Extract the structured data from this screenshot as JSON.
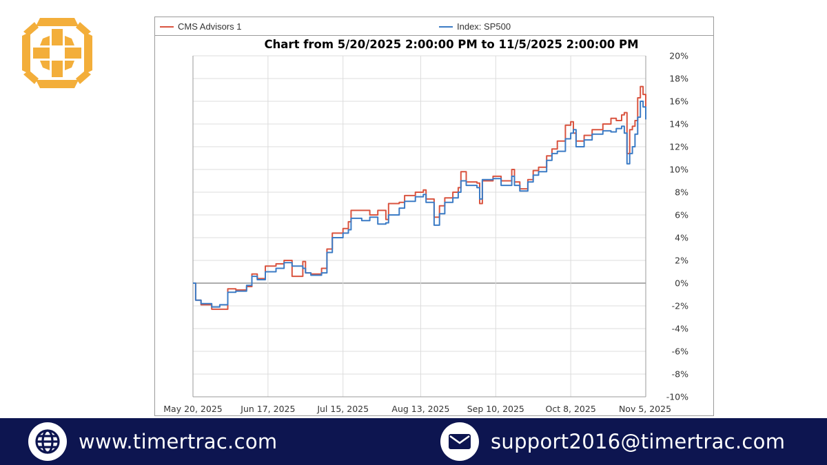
{
  "brand": {
    "logo_icon": "compass-cross-icon",
    "logo_color": "#f3ae3a"
  },
  "chart_data": {
    "type": "line",
    "title": "Chart from 5/20/2025 2:00:00 PM to 11/5/2025 2:00:00 PM",
    "xlabel": "",
    "ylabel": "",
    "ylim": [
      -10,
      20
    ],
    "y_ticks": [
      "20%",
      "18%",
      "16%",
      "14%",
      "12%",
      "10%",
      "8%",
      "6%",
      "4%",
      "2%",
      "0%",
      "-2%",
      "-4%",
      "-6%",
      "-8%",
      "-10%"
    ],
    "x_ticks": [
      "May 20, 2025",
      "Jun 17, 2025",
      "Jul 15, 2025",
      "Aug 13, 2025",
      "Sep 10, 2025",
      "Oct 8, 2025",
      "Nov 5, 2025"
    ],
    "grid": true,
    "legend_position": "top",
    "series": [
      {
        "name": "CMS Advisors 1",
        "color": "#d9533f",
        "points": [
          [
            "2025-05-20",
            0.0
          ],
          [
            "2025-05-21",
            -1.5
          ],
          [
            "2025-05-23",
            -1.9
          ],
          [
            "2025-05-27",
            -2.3
          ],
          [
            "2025-05-30",
            -2.3
          ],
          [
            "2025-06-02",
            -0.5
          ],
          [
            "2025-06-05",
            -0.6
          ],
          [
            "2025-06-09",
            -0.3
          ],
          [
            "2025-06-11",
            0.8
          ],
          [
            "2025-06-13",
            0.4
          ],
          [
            "2025-06-16",
            1.5
          ],
          [
            "2025-06-20",
            1.7
          ],
          [
            "2025-06-23",
            2.0
          ],
          [
            "2025-06-26",
            0.6
          ],
          [
            "2025-06-30",
            1.9
          ],
          [
            "2025-07-01",
            0.9
          ],
          [
            "2025-07-03",
            0.8
          ],
          [
            "2025-07-07",
            1.3
          ],
          [
            "2025-07-09",
            3.0
          ],
          [
            "2025-07-11",
            4.4
          ],
          [
            "2025-07-15",
            4.8
          ],
          [
            "2025-07-17",
            5.4
          ],
          [
            "2025-07-18",
            6.4
          ],
          [
            "2025-07-22",
            6.4
          ],
          [
            "2025-07-25",
            6.0
          ],
          [
            "2025-07-28",
            6.4
          ],
          [
            "2025-07-31",
            5.6
          ],
          [
            "2025-08-01",
            7.0
          ],
          [
            "2025-08-05",
            7.1
          ],
          [
            "2025-08-07",
            7.7
          ],
          [
            "2025-08-11",
            8.0
          ],
          [
            "2025-08-14",
            8.2
          ],
          [
            "2025-08-15",
            7.4
          ],
          [
            "2025-08-18",
            5.8
          ],
          [
            "2025-08-20",
            6.8
          ],
          [
            "2025-08-22",
            7.5
          ],
          [
            "2025-08-25",
            8.0
          ],
          [
            "2025-08-27",
            8.4
          ],
          [
            "2025-08-28",
            9.8
          ],
          [
            "2025-08-30",
            8.9
          ],
          [
            "2025-09-03",
            8.8
          ],
          [
            "2025-09-04",
            7.0
          ],
          [
            "2025-09-05",
            9.0
          ],
          [
            "2025-09-09",
            9.4
          ],
          [
            "2025-09-12",
            9.0
          ],
          [
            "2025-09-16",
            10.0
          ],
          [
            "2025-09-17",
            8.9
          ],
          [
            "2025-09-19",
            8.3
          ],
          [
            "2025-09-22",
            9.1
          ],
          [
            "2025-09-24",
            9.9
          ],
          [
            "2025-09-26",
            10.2
          ],
          [
            "2025-09-29",
            11.2
          ],
          [
            "2025-10-01",
            11.8
          ],
          [
            "2025-10-03",
            12.5
          ],
          [
            "2025-10-06",
            13.9
          ],
          [
            "2025-10-08",
            14.2
          ],
          [
            "2025-10-09",
            13.2
          ],
          [
            "2025-10-10",
            12.5
          ],
          [
            "2025-10-13",
            13.0
          ],
          [
            "2025-10-16",
            13.5
          ],
          [
            "2025-10-20",
            14.0
          ],
          [
            "2025-10-23",
            14.5
          ],
          [
            "2025-10-25",
            14.3
          ],
          [
            "2025-10-27",
            14.8
          ],
          [
            "2025-10-28",
            15.0
          ],
          [
            "2025-10-29",
            11.4
          ],
          [
            "2025-10-30",
            13.5
          ],
          [
            "2025-10-31",
            13.8
          ],
          [
            "2025-11-01",
            14.3
          ],
          [
            "2025-11-02",
            16.3
          ],
          [
            "2025-11-03",
            17.3
          ],
          [
            "2025-11-04",
            16.6
          ],
          [
            "2025-11-05",
            15.2
          ]
        ]
      },
      {
        "name": "Index: SP500",
        "color": "#3b7bc5",
        "points": [
          [
            "2025-05-20",
            0.0
          ],
          [
            "2025-05-21",
            -1.5
          ],
          [
            "2025-05-23",
            -1.8
          ],
          [
            "2025-05-27",
            -2.1
          ],
          [
            "2025-05-30",
            -1.9
          ],
          [
            "2025-06-02",
            -0.8
          ],
          [
            "2025-06-05",
            -0.7
          ],
          [
            "2025-06-09",
            -0.2
          ],
          [
            "2025-06-11",
            0.6
          ],
          [
            "2025-06-13",
            0.3
          ],
          [
            "2025-06-16",
            1.0
          ],
          [
            "2025-06-20",
            1.3
          ],
          [
            "2025-06-23",
            1.8
          ],
          [
            "2025-06-26",
            1.5
          ],
          [
            "2025-06-30",
            1.3
          ],
          [
            "2025-07-01",
            0.9
          ],
          [
            "2025-07-03",
            0.7
          ],
          [
            "2025-07-07",
            0.9
          ],
          [
            "2025-07-09",
            2.7
          ],
          [
            "2025-07-11",
            4.0
          ],
          [
            "2025-07-15",
            4.4
          ],
          [
            "2025-07-17",
            4.7
          ],
          [
            "2025-07-18",
            5.7
          ],
          [
            "2025-07-22",
            5.5
          ],
          [
            "2025-07-25",
            5.8
          ],
          [
            "2025-07-28",
            5.2
          ],
          [
            "2025-07-31",
            5.3
          ],
          [
            "2025-08-01",
            6.0
          ],
          [
            "2025-08-05",
            6.6
          ],
          [
            "2025-08-07",
            7.2
          ],
          [
            "2025-08-11",
            7.6
          ],
          [
            "2025-08-14",
            7.8
          ],
          [
            "2025-08-15",
            7.1
          ],
          [
            "2025-08-18",
            5.1
          ],
          [
            "2025-08-20",
            6.1
          ],
          [
            "2025-08-22",
            7.1
          ],
          [
            "2025-08-25",
            7.5
          ],
          [
            "2025-08-27",
            8.0
          ],
          [
            "2025-08-28",
            9.0
          ],
          [
            "2025-08-30",
            8.6
          ],
          [
            "2025-09-03",
            8.4
          ],
          [
            "2025-09-04",
            7.4
          ],
          [
            "2025-09-05",
            9.1
          ],
          [
            "2025-09-09",
            9.2
          ],
          [
            "2025-09-12",
            8.6
          ],
          [
            "2025-09-16",
            9.4
          ],
          [
            "2025-09-17",
            8.6
          ],
          [
            "2025-09-19",
            8.1
          ],
          [
            "2025-09-22",
            8.9
          ],
          [
            "2025-09-24",
            9.5
          ],
          [
            "2025-09-26",
            9.8
          ],
          [
            "2025-09-29",
            10.8
          ],
          [
            "2025-10-01",
            11.4
          ],
          [
            "2025-10-03",
            11.6
          ],
          [
            "2025-10-06",
            12.7
          ],
          [
            "2025-10-08",
            13.2
          ],
          [
            "2025-10-09",
            13.5
          ],
          [
            "2025-10-10",
            12.0
          ],
          [
            "2025-10-13",
            12.6
          ],
          [
            "2025-10-16",
            13.1
          ],
          [
            "2025-10-20",
            13.4
          ],
          [
            "2025-10-23",
            13.3
          ],
          [
            "2025-10-25",
            13.6
          ],
          [
            "2025-10-27",
            13.8
          ],
          [
            "2025-10-28",
            13.2
          ],
          [
            "2025-10-29",
            10.5
          ],
          [
            "2025-10-30",
            11.4
          ],
          [
            "2025-10-31",
            12.0
          ],
          [
            "2025-11-01",
            13.1
          ],
          [
            "2025-11-02",
            14.6
          ],
          [
            "2025-11-03",
            16.0
          ],
          [
            "2025-11-04",
            15.5
          ],
          [
            "2025-11-05",
            14.4
          ]
        ]
      }
    ]
  },
  "footer": {
    "website": "www.timertrac.com",
    "website_icon": "globe-icon",
    "email": "support2016@timertrac.com",
    "email_icon": "envelope-icon",
    "background": "#0d1550"
  }
}
